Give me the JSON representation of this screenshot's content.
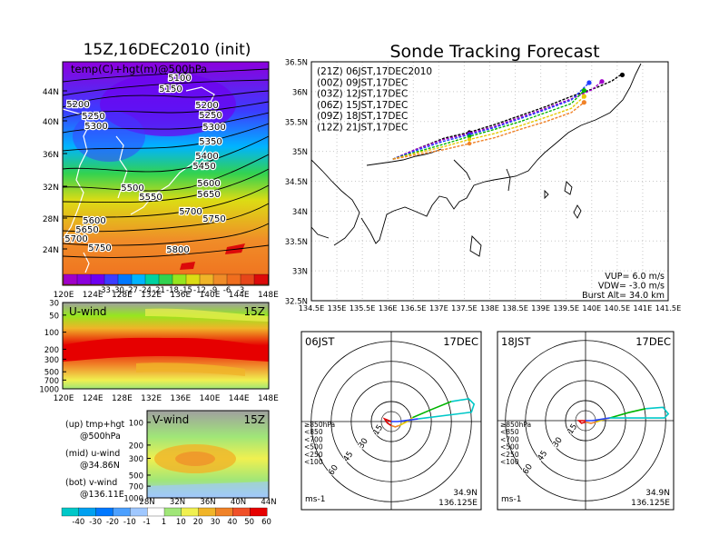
{
  "left": {
    "title": "15Z,16DEC2010 (init)",
    "map_label": "temp(C)+hgt(m)@500hPa",
    "lat_ticks": [
      "44N",
      "40N",
      "36N",
      "32N",
      "28N",
      "24N"
    ],
    "lon_ticks": [
      "120E",
      "124E",
      "128E",
      "132E",
      "136E",
      "140E",
      "144E",
      "148E"
    ],
    "contour_labels": [
      "5100",
      "5150",
      "5200",
      "5200",
      "5250",
      "5250",
      "5300",
      "5300",
      "5350",
      "5400",
      "5450",
      "5500",
      "5550",
      "5600",
      "5600",
      "5650",
      "5650",
      "5700",
      "5700",
      "5750",
      "5750",
      "5800"
    ],
    "temp_colorbar": {
      "labels": [
        "-33",
        "-30",
        "-27",
        "-24",
        "-21",
        "-18",
        "-15",
        "-12",
        "-9",
        "-6",
        "-3"
      ],
      "colors": [
        "#a000c8",
        "#8c00dc",
        "#6e00f0",
        "#3c3cff",
        "#0078ff",
        "#00b4ff",
        "#00d2a0",
        "#32d250",
        "#96e61e",
        "#dcdc14",
        "#f0b428",
        "#f08c28",
        "#f06e1e",
        "#e64619",
        "#dc0a0a"
      ]
    },
    "uwind": {
      "label": "U-wind",
      "time": "15Z",
      "y_ticks": [
        "30",
        "50",
        "100",
        "200",
        "300",
        "500",
        "700",
        "1000"
      ]
    },
    "vwind": {
      "label": "V-wind",
      "time": "15Z",
      "y_ticks": [
        "100",
        "200",
        "300",
        "500",
        "700",
        "1000"
      ],
      "x_ticks": [
        "28N",
        "32N",
        "36N",
        "40N",
        "44N"
      ]
    },
    "notes": [
      [
        "(up) tmp+hgt",
        "@500hPa"
      ],
      [
        "(mid) u-wind",
        "@34.86N"
      ],
      [
        "(bot) v-wind",
        "@136.11E"
      ]
    ],
    "wind_colorbar": {
      "labels": [
        "-40",
        "-30",
        "-20",
        "-10",
        "-1",
        "1",
        "10",
        "20",
        "30",
        "40",
        "50",
        "60"
      ],
      "colors": [
        "#00c8c8",
        "#00a0f0",
        "#0078ff",
        "#4ca0ff",
        "#a0c8ff",
        "#ffffff",
        "#a0e678",
        "#f0f050",
        "#f0b428",
        "#f08228",
        "#f05028",
        "#e60000"
      ]
    }
  },
  "main": {
    "title": "Sonde Tracking Forecast",
    "lat_ticks": [
      "36.5N",
      "36N",
      "35.5N",
      "35N",
      "34.5N",
      "34N",
      "33.5N",
      "33N",
      "32.5N"
    ],
    "lon_ticks": [
      "134.5E",
      "135E",
      "135.5E",
      "136E",
      "136.5E",
      "137E",
      "137.5E",
      "138E",
      "138.5E",
      "139E",
      "139.5E",
      "140E",
      "140.5E",
      "141E",
      "141.5E"
    ],
    "legend": [
      {
        "text": "(21Z)  06JST,17DEC2010",
        "color": "#000000"
      },
      {
        "text": "(00Z)  09JST,17DEC",
        "color": "#a000c8"
      },
      {
        "text": "(03Z)  12JST,17DEC",
        "color": "#1e3cff"
      },
      {
        "text": "(06Z)  15JST,17DEC",
        "color": "#00b400"
      },
      {
        "text": "(09Z)  18JST,17DEC",
        "color": "#e6c800"
      },
      {
        "text": "(12Z)  21JST,17DEC",
        "color": "#f08228"
      }
    ],
    "params": [
      "VUP=  6.0  m/s",
      "VDW= -3.0  m/s",
      "Burst Alt=  34.0  km"
    ]
  },
  "hodographs": [
    {
      "time": "06JST",
      "date": "17DEC",
      "unit": "ms-1",
      "loc": [
        "34.9N",
        "136.125E"
      ],
      "rings": [
        "15",
        "30",
        "45",
        "60"
      ],
      "legend": [
        {
          "t": "≥850hPa",
          "c": "#dc0000"
        },
        {
          "t": "<850",
          "c": "#f08228"
        },
        {
          "t": "<700",
          "c": "#e6c800"
        },
        {
          "t": "<500",
          "c": "#00b400"
        },
        {
          "t": "<250",
          "c": "#00c8c8"
        },
        {
          "t": "<100",
          "c": "#1e3cff"
        }
      ]
    },
    {
      "time": "18JST",
      "date": "17DEC",
      "unit": "ms-1",
      "loc": [
        "34.9N",
        "136.125E"
      ],
      "rings": [
        "15",
        "30",
        "45",
        "60"
      ],
      "legend": [
        {
          "t": "≥850hPa",
          "c": "#dc0000"
        },
        {
          "t": "<850",
          "c": "#f08228"
        },
        {
          "t": "<700",
          "c": "#e6c800"
        },
        {
          "t": "<500",
          "c": "#00b400"
        },
        {
          "t": "<250",
          "c": "#00c8c8"
        },
        {
          "t": "<100",
          "c": "#1e3cff"
        }
      ]
    }
  ],
  "chart_data": [
    {
      "type": "line",
      "title": "Sonde Tracking Forecast",
      "xlim": [
        134.5,
        141.5
      ],
      "ylim": [
        32.5,
        36.5
      ],
      "series": [
        {
          "name": "(21Z)  06JST,17DEC2010",
          "x": [
            136.1,
            136.6,
            137.1,
            137.6,
            138.1,
            138.6,
            139.1,
            139.6,
            140.1,
            140.4,
            140.55,
            140.6
          ],
          "y": [
            34.87,
            35.05,
            35.22,
            35.32,
            35.45,
            35.6,
            35.75,
            35.92,
            36.07,
            36.18,
            36.27,
            36.28
          ]
        },
        {
          "name": "(00Z)  09JST,17DEC",
          "x": [
            136.1,
            136.6,
            137.1,
            137.6,
            138.1,
            138.6,
            139.1,
            139.6,
            140.0,
            140.2
          ],
          "y": [
            34.87,
            35.05,
            35.2,
            35.3,
            35.42,
            35.57,
            35.72,
            35.88,
            36.03,
            36.17
          ]
        },
        {
          "name": "(03Z)  12JST,17DEC",
          "x": [
            136.1,
            136.6,
            137.1,
            137.6,
            138.1,
            138.6,
            139.1,
            139.6,
            139.95
          ],
          "y": [
            34.87,
            35.03,
            35.17,
            35.28,
            35.4,
            35.55,
            35.7,
            35.86,
            36.15
          ]
        },
        {
          "name": "(06Z)  15JST,17DEC",
          "x": [
            136.1,
            136.6,
            137.1,
            137.6,
            138.1,
            138.6,
            139.1,
            139.6,
            139.85
          ],
          "y": [
            34.87,
            35.0,
            35.12,
            35.25,
            35.37,
            35.5,
            35.65,
            35.8,
            36.02
          ]
        },
        {
          "name": "(09Z)  18JST,17DEC",
          "x": [
            136.1,
            136.6,
            137.1,
            137.6,
            138.1,
            138.6,
            139.1,
            139.6,
            139.85
          ],
          "y": [
            34.87,
            34.98,
            35.08,
            35.2,
            35.3,
            35.43,
            35.57,
            35.72,
            35.92
          ]
        },
        {
          "name": "(12Z)  21JST,17DEC",
          "x": [
            136.1,
            136.6,
            137.1,
            137.6,
            138.1,
            138.6,
            139.1,
            139.6,
            139.85
          ],
          "y": [
            34.87,
            34.95,
            35.03,
            35.13,
            35.23,
            35.37,
            35.5,
            35.65,
            35.82
          ]
        }
      ]
    },
    {
      "type": "line",
      "title": "06JST 17DEC",
      "units": "ms-1",
      "series": [
        {
          "name": "≥850hPa",
          "x": [
            0,
            -5,
            -3,
            0
          ],
          "y": [
            0,
            2,
            -1,
            -3
          ]
        },
        {
          "name": "<850",
          "x": [
            0,
            3,
            6
          ],
          "y": [
            -3,
            -4,
            -3
          ]
        },
        {
          "name": "<700",
          "x": [
            6,
            12,
            16
          ],
          "y": [
            -3,
            0,
            3
          ]
        },
        {
          "name": "<500",
          "x": [
            16,
            30,
            45
          ],
          "y": [
            3,
            9,
            15
          ]
        },
        {
          "name": "<250",
          "x": [
            45,
            58,
            62,
            60,
            20
          ],
          "y": [
            15,
            17,
            13,
            7,
            2
          ]
        },
        {
          "name": "<100",
          "x": [
            20,
            5,
            0
          ],
          "y": [
            2,
            0,
            0
          ]
        }
      ]
    },
    {
      "type": "line",
      "title": "18JST 17DEC",
      "units": "ms-1",
      "series": [
        {
          "name": "≥850hPa",
          "x": [
            0,
            -5,
            -3,
            0
          ],
          "y": [
            0,
            0,
            -2,
            -1
          ]
        },
        {
          "name": "<850",
          "x": [
            0,
            4,
            8
          ],
          "y": [
            -1,
            -2,
            -1
          ]
        },
        {
          "name": "<700",
          "x": [
            8,
            14,
            18
          ],
          "y": [
            -1,
            1,
            2
          ]
        },
        {
          "name": "<500",
          "x": [
            18,
            32,
            45
          ],
          "y": [
            2,
            6,
            9
          ]
        },
        {
          "name": "<250",
          "x": [
            45,
            58,
            62,
            59,
            18
          ],
          "y": [
            9,
            10,
            5,
            2,
            2
          ]
        },
        {
          "name": "<100",
          "x": [
            18,
            5,
            0
          ],
          "y": [
            2,
            0,
            0
          ]
        }
      ]
    }
  ]
}
